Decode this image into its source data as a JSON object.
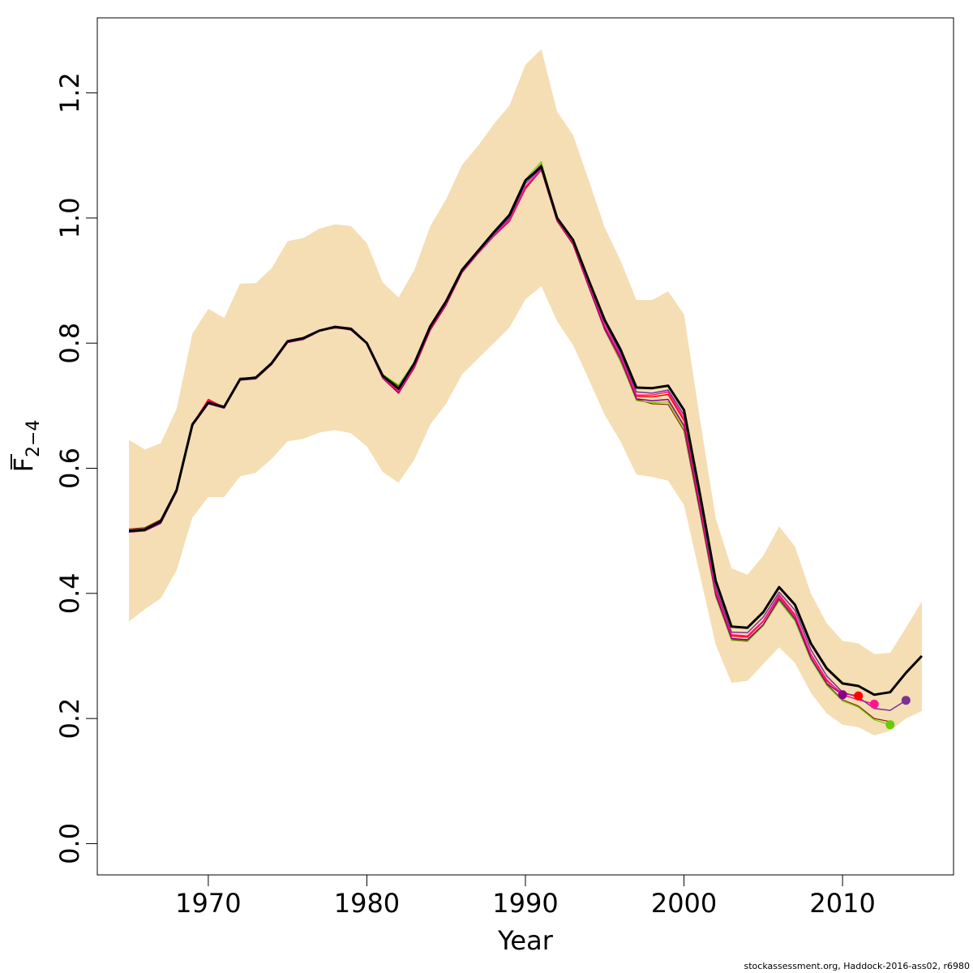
{
  "chart_data": {
    "type": "line",
    "xlabel": "Year",
    "ylabel": {
      "main": "F",
      "subscript": "2−4",
      "overline": true
    },
    "xlim": [
      1963,
      2017
    ],
    "ylim": [
      -0.05,
      1.32
    ],
    "xticks": [
      1970,
      1980,
      1990,
      2000,
      2010
    ],
    "yticks": [
      0.0,
      0.2,
      0.4,
      0.6,
      0.8,
      1.0,
      1.2
    ],
    "ytick_labels": [
      "0.0",
      "0.2",
      "0.4",
      "0.6",
      "0.8",
      "1.0",
      "1.2"
    ],
    "grid": false,
    "legend": "none",
    "band": {
      "color": "#F5DEB3",
      "x": [
        1965,
        1966,
        1967,
        1968,
        1969,
        1970,
        1971,
        1972,
        1973,
        1974,
        1975,
        1976,
        1977,
        1978,
        1979,
        1980,
        1981,
        1982,
        1983,
        1984,
        1985,
        1986,
        1987,
        1988,
        1989,
        1990,
        1991,
        1992,
        1993,
        1994,
        1995,
        1996,
        1997,
        1998,
        1999,
        2000,
        2001,
        2002,
        2003,
        2004,
        2005,
        2006,
        2007,
        2008,
        2009,
        2010,
        2011,
        2012,
        2013,
        2014,
        2015
      ],
      "upper": [
        0.645,
        0.63,
        0.64,
        0.695,
        0.815,
        0.855,
        0.84,
        0.895,
        0.896,
        0.92,
        0.963,
        0.968,
        0.983,
        0.99,
        0.987,
        0.96,
        0.897,
        0.873,
        0.917,
        0.987,
        1.03,
        1.085,
        1.115,
        1.15,
        1.18,
        1.245,
        1.27,
        1.17,
        1.133,
        1.06,
        0.985,
        0.932,
        0.869,
        0.869,
        0.883,
        0.846,
        0.68,
        0.52,
        0.44,
        0.43,
        0.46,
        0.507,
        0.475,
        0.4,
        0.352,
        0.324,
        0.32,
        0.303,
        0.305,
        0.345,
        0.387
      ],
      "lower": [
        0.355,
        0.375,
        0.392,
        0.437,
        0.521,
        0.554,
        0.554,
        0.587,
        0.593,
        0.615,
        0.643,
        0.647,
        0.657,
        0.661,
        0.656,
        0.635,
        0.594,
        0.577,
        0.614,
        0.67,
        0.703,
        0.75,
        0.775,
        0.8,
        0.825,
        0.87,
        0.891,
        0.835,
        0.797,
        0.742,
        0.685,
        0.643,
        0.59,
        0.586,
        0.58,
        0.541,
        0.43,
        0.318,
        0.257,
        0.26,
        0.287,
        0.314,
        0.289,
        0.241,
        0.208,
        0.19,
        0.186,
        0.173,
        0.18,
        0.2,
        0.212
      ]
    },
    "series": [
      {
        "color": "#000000",
        "width": 3,
        "dot": false,
        "x": [
          1965,
          1966,
          1967,
          1968,
          1969,
          1970,
          1971,
          1972,
          1973,
          1974,
          1975,
          1976,
          1977,
          1978,
          1979,
          1980,
          1981,
          1982,
          1983,
          1984,
          1985,
          1986,
          1987,
          1988,
          1989,
          1990,
          1991,
          1992,
          1993,
          1994,
          1995,
          1996,
          1997,
          1998,
          1999,
          2000,
          2001,
          2002,
          2003,
          2004,
          2005,
          2006,
          2007,
          2008,
          2009,
          2010,
          2011,
          2012,
          2013,
          2014,
          2015
        ],
        "y": [
          0.5,
          0.502,
          0.515,
          0.565,
          0.67,
          0.705,
          0.698,
          0.742,
          0.745,
          0.768,
          0.803,
          0.808,
          0.82,
          0.826,
          0.823,
          0.8,
          0.748,
          0.727,
          0.768,
          0.827,
          0.867,
          0.917,
          0.947,
          0.977,
          1.005,
          1.06,
          1.082,
          1.0,
          0.965,
          0.9,
          0.837,
          0.79,
          0.729,
          0.728,
          0.732,
          0.693,
          0.56,
          0.42,
          0.347,
          0.345,
          0.37,
          0.41,
          0.382,
          0.32,
          0.28,
          0.256,
          0.252,
          0.238,
          0.242,
          0.273,
          0.3
        ]
      },
      {
        "color": "#7B3294",
        "width": 1.5,
        "dot": true,
        "x": [
          1965,
          1966,
          1967,
          1968,
          1969,
          1970,
          1971,
          1972,
          1973,
          1974,
          1975,
          1976,
          1977,
          1978,
          1979,
          1980,
          1981,
          1982,
          1983,
          1984,
          1985,
          1986,
          1987,
          1988,
          1989,
          1990,
          1991,
          1992,
          1993,
          1994,
          1995,
          1996,
          1997,
          1998,
          1999,
          2000,
          2001,
          2002,
          2003,
          2004,
          2005,
          2006,
          2007,
          2008,
          2009,
          2010,
          2011,
          2012,
          2013,
          2014
        ],
        "y": [
          0.5,
          0.502,
          0.515,
          0.565,
          0.67,
          0.705,
          0.698,
          0.742,
          0.745,
          0.768,
          0.803,
          0.808,
          0.82,
          0.826,
          0.823,
          0.8,
          0.748,
          0.726,
          0.767,
          0.826,
          0.866,
          0.916,
          0.945,
          0.974,
          1.0,
          1.055,
          1.08,
          0.998,
          0.963,
          0.897,
          0.833,
          0.784,
          0.722,
          0.72,
          0.725,
          0.685,
          0.55,
          0.41,
          0.338,
          0.337,
          0.362,
          0.402,
          0.373,
          0.31,
          0.268,
          0.242,
          0.234,
          0.216,
          0.213,
          0.229
        ]
      },
      {
        "color": "#FF1493",
        "width": 1.5,
        "dot": true,
        "x": [
          1965,
          1966,
          1967,
          1968,
          1969,
          1970,
          1971,
          1972,
          1973,
          1974,
          1975,
          1976,
          1977,
          1978,
          1979,
          1980,
          1981,
          1982,
          1983,
          1984,
          1985,
          1986,
          1987,
          1988,
          1989,
          1990,
          1991,
          1992,
          1993,
          1994,
          1995,
          1996,
          1997,
          1998,
          1999,
          2000,
          2001,
          2002,
          2003,
          2004,
          2005,
          2006,
          2007,
          2008,
          2009,
          2010,
          2011,
          2012
        ],
        "y": [
          0.5,
          0.502,
          0.515,
          0.565,
          0.67,
          0.708,
          0.697,
          0.743,
          0.745,
          0.768,
          0.802,
          0.807,
          0.82,
          0.826,
          0.822,
          0.8,
          0.746,
          0.723,
          0.764,
          0.824,
          0.864,
          0.915,
          0.944,
          0.972,
          0.997,
          1.05,
          1.078,
          0.997,
          0.961,
          0.894,
          0.828,
          0.78,
          0.717,
          0.717,
          0.722,
          0.68,
          0.545,
          0.405,
          0.334,
          0.332,
          0.356,
          0.398,
          0.366,
          0.303,
          0.262,
          0.238,
          0.23,
          0.223
        ]
      },
      {
        "color": "#FF0000",
        "width": 1.5,
        "dot": true,
        "x": [
          1965,
          1966,
          1967,
          1968,
          1969,
          1970,
          1971,
          1972,
          1973,
          1974,
          1975,
          1976,
          1977,
          1978,
          1979,
          1980,
          1981,
          1982,
          1983,
          1984,
          1985,
          1986,
          1987,
          1988,
          1989,
          1990,
          1991,
          1992,
          1993,
          1994,
          1995,
          1996,
          1997,
          1998,
          1999,
          2000,
          2001,
          2002,
          2003,
          2004,
          2005,
          2006,
          2007,
          2008,
          2009,
          2010,
          2011
        ],
        "y": [
          0.5,
          0.502,
          0.515,
          0.565,
          0.67,
          0.71,
          0.697,
          0.744,
          0.745,
          0.768,
          0.802,
          0.807,
          0.82,
          0.826,
          0.822,
          0.8,
          0.745,
          0.722,
          0.763,
          0.823,
          0.863,
          0.914,
          0.944,
          0.972,
          0.996,
          1.048,
          1.078,
          0.996,
          0.96,
          0.893,
          0.827,
          0.779,
          0.715,
          0.714,
          0.718,
          0.676,
          0.542,
          0.403,
          0.332,
          0.33,
          0.355,
          0.396,
          0.364,
          0.302,
          0.26,
          0.24,
          0.236
        ]
      },
      {
        "color": "#8B008B",
        "width": 1.5,
        "dot": true,
        "x": [
          1965,
          1966,
          1967,
          1968,
          1969,
          1970,
          1971,
          1972,
          1973,
          1974,
          1975,
          1976,
          1977,
          1978,
          1979,
          1980,
          1981,
          1982,
          1983,
          1984,
          1985,
          1986,
          1987,
          1988,
          1989,
          1990,
          1991,
          1992,
          1993,
          1994,
          1995,
          1996,
          1997,
          1998,
          1999,
          2000,
          2001,
          2002,
          2003,
          2004,
          2005,
          2006,
          2007,
          2008,
          2009,
          2010
        ],
        "y": [
          0.498,
          0.5,
          0.512,
          0.562,
          0.668,
          0.703,
          0.696,
          0.741,
          0.743,
          0.766,
          0.801,
          0.806,
          0.819,
          0.825,
          0.821,
          0.799,
          0.744,
          0.72,
          0.761,
          0.821,
          0.861,
          0.913,
          0.943,
          0.971,
          0.995,
          1.047,
          1.077,
          0.995,
          0.958,
          0.89,
          0.823,
          0.775,
          0.711,
          0.708,
          0.71,
          0.668,
          0.535,
          0.398,
          0.328,
          0.326,
          0.35,
          0.392,
          0.36,
          0.297,
          0.256,
          0.238
        ]
      },
      {
        "color": "#66CC00",
        "width": 1.2,
        "dot": true,
        "x": [
          1965,
          1966,
          1967,
          1968,
          1969,
          1970,
          1971,
          1972,
          1973,
          1974,
          1975,
          1976,
          1977,
          1978,
          1979,
          1980,
          1981,
          1982,
          1983,
          1984,
          1985,
          1986,
          1987,
          1988,
          1989,
          1990,
          1991,
          1992,
          1993,
          1994,
          1995,
          1996,
          1997,
          1998,
          1999,
          2000,
          2001,
          2002,
          2003,
          2004,
          2005,
          2006,
          2007,
          2008,
          2009,
          2010,
          2011,
          2012,
          2013
        ],
        "y": [
          0.5,
          0.503,
          0.513,
          0.563,
          0.67,
          0.706,
          0.696,
          0.742,
          0.744,
          0.767,
          0.802,
          0.807,
          0.82,
          0.825,
          0.823,
          0.801,
          0.75,
          0.733,
          0.77,
          0.828,
          0.866,
          0.916,
          0.946,
          0.976,
          1.003,
          1.062,
          1.09,
          1.0,
          0.96,
          0.89,
          0.822,
          0.772,
          0.708,
          0.705,
          0.706,
          0.665,
          0.532,
          0.395,
          0.325,
          0.323,
          0.348,
          0.388,
          0.356,
          0.294,
          0.253,
          0.228,
          0.218,
          0.198,
          0.19
        ]
      },
      {
        "color": "#8B2500",
        "width": 1.2,
        "dot": false,
        "x": [
          1965,
          1966,
          1967,
          1968,
          1969,
          1970,
          1971,
          1972,
          1973,
          1974,
          1975,
          1976,
          1977,
          1978,
          1979,
          1980,
          1981,
          1982,
          1983,
          1984,
          1985,
          1986,
          1987,
          1988,
          1989,
          1990,
          1991,
          1992,
          1993,
          1994,
          1995,
          1996,
          1997,
          1998,
          1999,
          2000,
          2001,
          2002,
          2003,
          2004,
          2005,
          2006,
          2007,
          2008,
          2009,
          2010,
          2011,
          2012,
          2013
        ],
        "y": [
          0.503,
          0.505,
          0.518,
          0.567,
          0.672,
          0.704,
          0.697,
          0.741,
          0.744,
          0.767,
          0.801,
          0.806,
          0.82,
          0.824,
          0.822,
          0.8,
          0.749,
          0.731,
          0.769,
          0.827,
          0.865,
          0.915,
          0.945,
          0.975,
          1.001,
          1.059,
          1.086,
          0.998,
          0.958,
          0.889,
          0.821,
          0.771,
          0.71,
          0.703,
          0.702,
          0.66,
          0.53,
          0.395,
          0.326,
          0.324,
          0.349,
          0.389,
          0.357,
          0.296,
          0.255,
          0.23,
          0.22,
          0.2,
          0.195
        ]
      }
    ]
  },
  "credit": "stockassessment.org, Haddock-2016-ass02, r6980"
}
